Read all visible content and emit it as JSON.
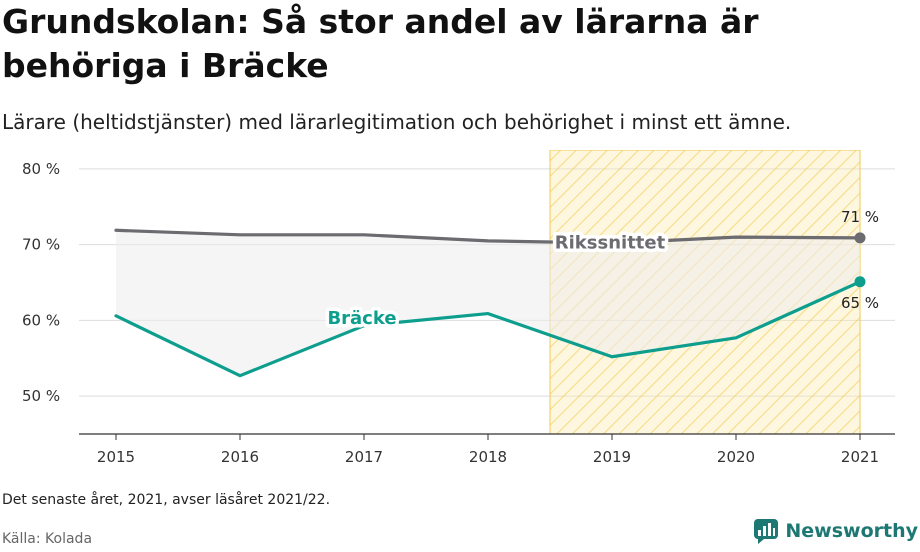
{
  "header": {
    "title": "Grundskolan: Så stor andel av lärarna är behöriga i Bräcke",
    "subtitle": "Lärare (heltidstjänster) med lärarlegitimation och behörighet i minst ett ämne."
  },
  "footer": {
    "note": "Det senaste året, 2021, avser läsåret 2021/22.",
    "source": "Källa: Kolada",
    "brand": "Newsworthy"
  },
  "colors": {
    "national": "#6b6b70",
    "local": "#0e9e8e",
    "highlight_fill": "#fbe6a4",
    "highlight_hatch": "#f2c94c",
    "gap_fill": "#ededed",
    "brand": "#1d7874"
  },
  "chart_data": {
    "type": "line",
    "x": [
      "2015",
      "2016",
      "2017",
      "2018",
      "2019",
      "2020",
      "2021"
    ],
    "ylim": [
      45,
      82.5
    ],
    "yticks": [
      50,
      60,
      70,
      80
    ],
    "ytick_labels": [
      "50 %",
      "60 %",
      "70 %",
      "80 %"
    ],
    "highlight_range": [
      "2019",
      "2021"
    ],
    "grid": true,
    "series": [
      {
        "name": "Rikssnittet",
        "values": [
          71.9,
          71.3,
          71.3,
          70.5,
          70.2,
          71.0,
          70.9
        ],
        "end_label": "71 %",
        "color_key": "national"
      },
      {
        "name": "Bräcke",
        "values": [
          60.6,
          52.7,
          59.3,
          60.9,
          55.2,
          57.7,
          65.1
        ],
        "end_label": "65 %",
        "color_key": "local"
      }
    ]
  }
}
